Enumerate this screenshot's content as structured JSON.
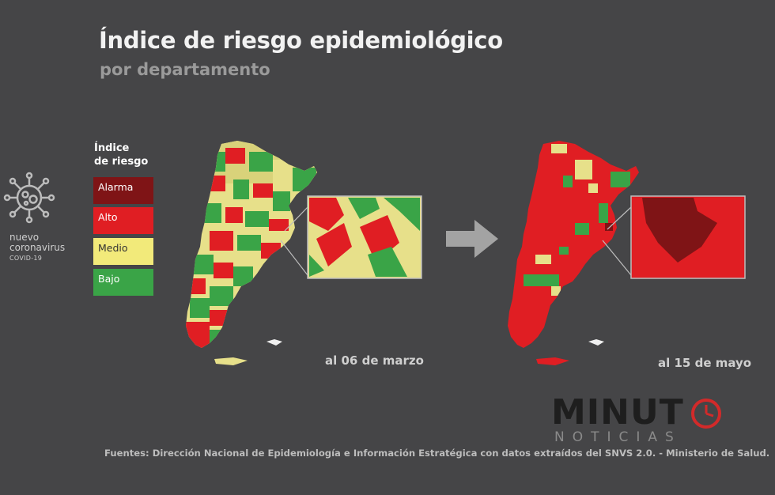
{
  "title": "Índice de riesgo epidemiológico",
  "subtitle": "por departamento",
  "brand": {
    "icon": "coronavirus-icon",
    "line1": "nuevo",
    "line2": "coronavirus",
    "line3": "COVID-19"
  },
  "legend": {
    "title_line1": "Índice",
    "title_line2": "de riesgo",
    "items": [
      {
        "label": "Alarma",
        "color": "#7f1416",
        "text_color": "#ffffff"
      },
      {
        "label": "Alto",
        "color": "#e01e23",
        "text_color": "#ffffff"
      },
      {
        "label": "Medio",
        "color": "#f2ea7a",
        "text_color": "#333333"
      },
      {
        "label": "Bajo",
        "color": "#3aa447",
        "text_color": "#ffffff"
      }
    ]
  },
  "maps": [
    {
      "caption": "al 06 de marzo"
    },
    {
      "caption": "al 15 de mayo"
    }
  ],
  "logo": {
    "main": "MINUT",
    "sub": "NOTICIAS"
  },
  "source": "Fuentes: Dirección Nacional de Epidemiología e Información Estratégica con datos extraídos del SNVS 2.0. - Ministerio de Salud."
}
